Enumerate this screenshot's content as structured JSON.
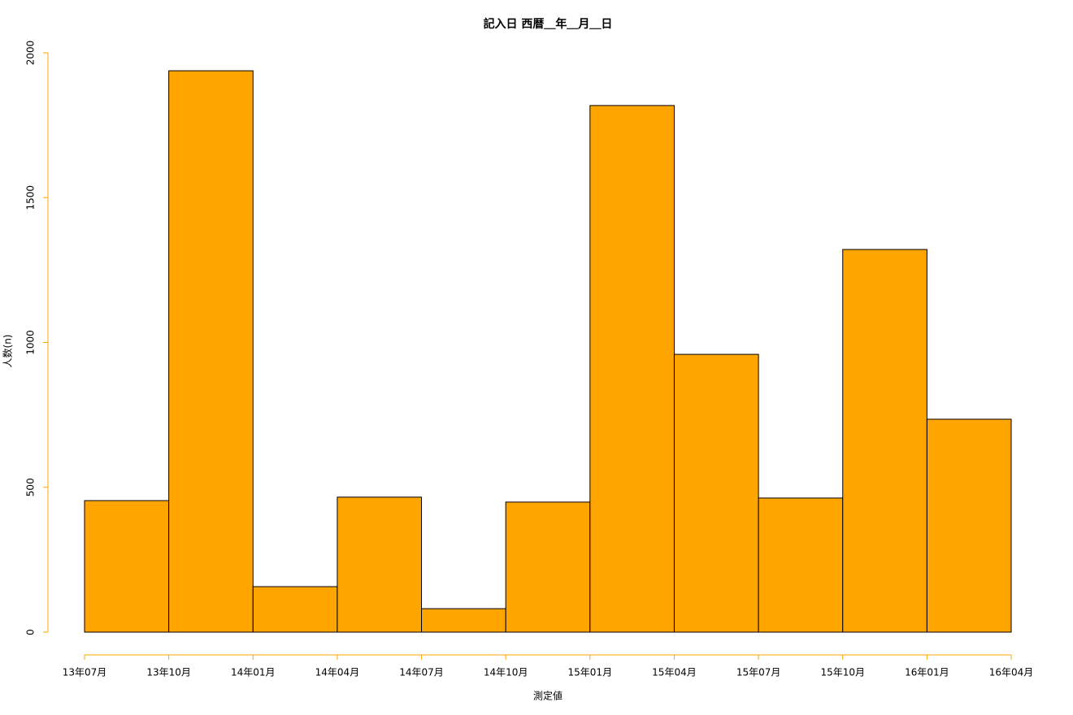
{
  "chart_data": {
    "type": "histogram",
    "title": "記入日 西暦＿年＿月＿日",
    "x_label": "測定値",
    "y_label": "人数(n)",
    "bins": [
      "13年07月",
      "13年10月",
      "14年01月",
      "14年04月",
      "14年07月",
      "14年10月",
      "15年01月",
      "15年04月",
      "15年07月",
      "15年10月",
      "16年01月",
      "16年04月"
    ],
    "counts": [
      454,
      1938,
      157,
      466,
      81,
      449,
      1818,
      959,
      463,
      1321,
      735
    ],
    "color": "#ffa500",
    "edge_color": "#000000",
    "axis_color": "#ffa500",
    "ylim": [
      0,
      2000
    ],
    "yticks": [
      0,
      500,
      1000,
      1500,
      2000
    ]
  }
}
